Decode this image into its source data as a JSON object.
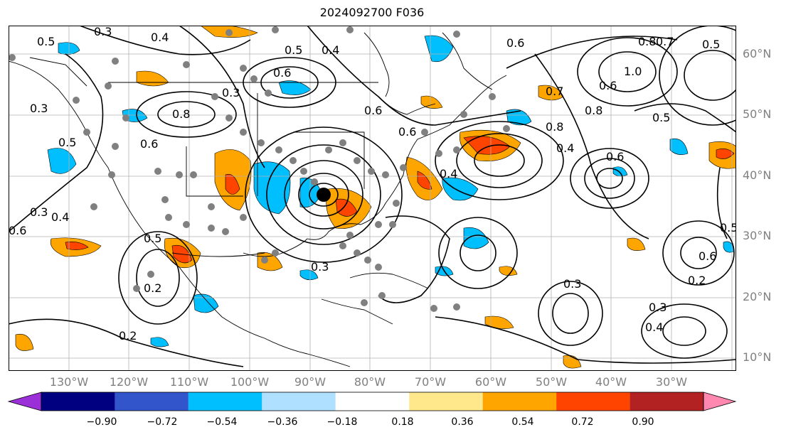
{
  "title": "2024092700 F036",
  "lat_labels": [
    "60°N",
    "50°N",
    "40°N",
    "30°N",
    "20°N",
    "10°N"
  ],
  "lon_labels": [
    "130°W",
    "120°W",
    "110°W",
    "100°W",
    "90°W",
    "80°W",
    "70°W",
    "60°W",
    "50°W",
    "40°W",
    "30°W"
  ],
  "colorbar": {
    "ticks": [
      "−0.90",
      "−0.72",
      "−0.54",
      "−0.36",
      "−0.18",
      "0.18",
      "0.36",
      "0.54",
      "0.72",
      "0.90"
    ],
    "colors": [
      "#9b30d8",
      "#000080",
      "#3355cc",
      "#00bfff",
      "#b0e0ff",
      "#ffffff",
      "#ffe88c",
      "#ffa500",
      "#ff4400",
      "#b22222",
      "#ff88b0"
    ]
  },
  "contour_labels": [
    "0.3",
    "0.4",
    "0.5",
    "0.6",
    "0.4",
    "0.5",
    "0.6",
    "0.3",
    "0.6",
    "0.7",
    "0.5",
    "0.8",
    "1.0",
    "0.6",
    "0.8",
    "0.3",
    "0.5",
    "0.8",
    "0.6",
    "0.6",
    "0.7",
    "0.8",
    "0.4",
    "0.6",
    "0.5",
    "0.4",
    "0.3",
    "0.6",
    "0.4",
    "0.5",
    "0.2",
    "0.3",
    "0.2",
    "0.3",
    "0.2",
    "0.3",
    "0.4",
    "0.6",
    "0.5"
  ],
  "center_marker": "storm-center-marker"
}
